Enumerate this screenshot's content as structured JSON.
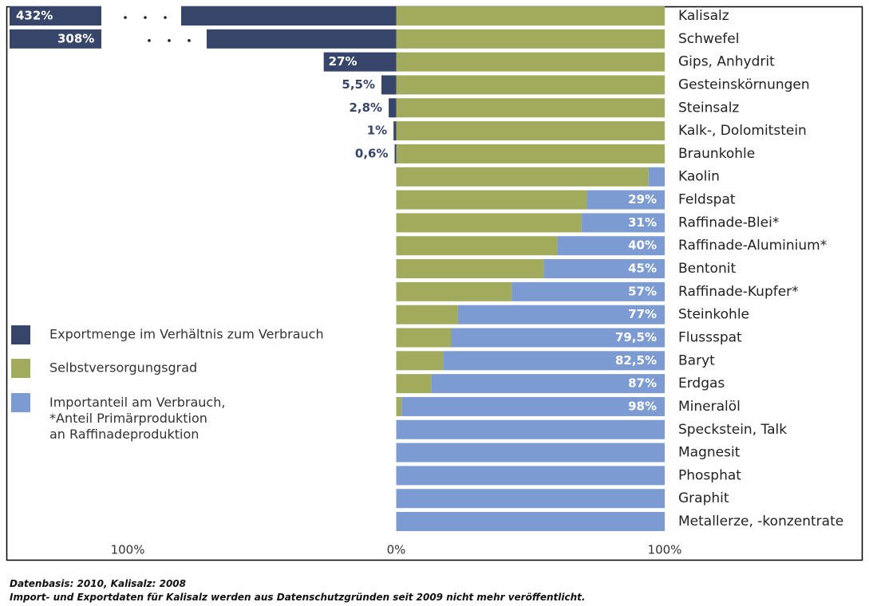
{
  "chart_data": {
    "type": "diverging-bar",
    "categories": [
      "Kalisalz",
      "Schwefel",
      "Gips, Anhydrit",
      "Gesteinskörnungen",
      "Steinsalz",
      "Kalk-, Dolomitstein",
      "Braunkohle",
      "Kaolin",
      "Feldspat",
      "Raffinade-Blei*",
      "Raffinade-Aluminium*",
      "Bentonit",
      "Raffinade-Kupfer*",
      "Steinkohle",
      "Flussspat",
      "Baryt",
      "Erdgas",
      "Mineralöl",
      "Speckstein, Talk",
      "Magnesit",
      "Phosphat",
      "Graphit",
      "Metallerze, -konzentrate"
    ],
    "series": [
      {
        "name": "Exportmenge im Verhältnis zum Verbrauch",
        "color": "#37456b",
        "direction": "left",
        "values": [
          432,
          308,
          27,
          5.5,
          2.8,
          1,
          0.6,
          null,
          null,
          null,
          null,
          null,
          null,
          null,
          null,
          null,
          null,
          null,
          null,
          null,
          null,
          null,
          null
        ],
        "value_labels": [
          "432%",
          "308%",
          "27%",
          "5,5%",
          "2,8%",
          "1%",
          "0,6%",
          null,
          null,
          null,
          null,
          null,
          null,
          null,
          null,
          null,
          null,
          null,
          null,
          null,
          null,
          null,
          null
        ]
      },
      {
        "name": "Selbstversorgungsgrad",
        "color": "#a2ab5c",
        "values": [
          100,
          100,
          100,
          100,
          100,
          100,
          100,
          94,
          71,
          69,
          60,
          55,
          43,
          23,
          20.5,
          17.5,
          13,
          2,
          0,
          0,
          0,
          0,
          0
        ]
      },
      {
        "name": "Importanteil am Verbrauch,\n*Anteil Primärproduktion\nan Raffinadeproduktion",
        "color": "#7b9bd2",
        "stacked": true,
        "values": [
          0,
          0,
          0,
          0,
          0,
          0,
          0,
          6,
          29,
          31,
          40,
          45,
          57,
          77,
          79.5,
          82.5,
          87,
          98,
          100,
          100,
          100,
          100,
          100
        ],
        "value_labels": [
          null,
          null,
          null,
          null,
          null,
          null,
          null,
          null,
          "29%",
          "31%",
          "40%",
          "45%",
          "57%",
          "77%",
          "79,5%",
          "82,5%",
          "87%",
          "98%",
          null,
          null,
          null,
          null,
          null
        ]
      }
    ],
    "xlim": [
      -144,
      100
    ],
    "xticks": [
      {
        "value": -100,
        "label": "100%"
      },
      {
        "value": 0,
        "label": "0%"
      },
      {
        "value": 100,
        "label": "100%"
      }
    ],
    "footnotes": [
      "Datenbasis: 2010, Kalisalz: 2008",
      "Import- und Exportdaten für Kalisalz werden aus Datenschutzgründen seit 2009 nicht mehr veröffentlicht."
    ]
  }
}
